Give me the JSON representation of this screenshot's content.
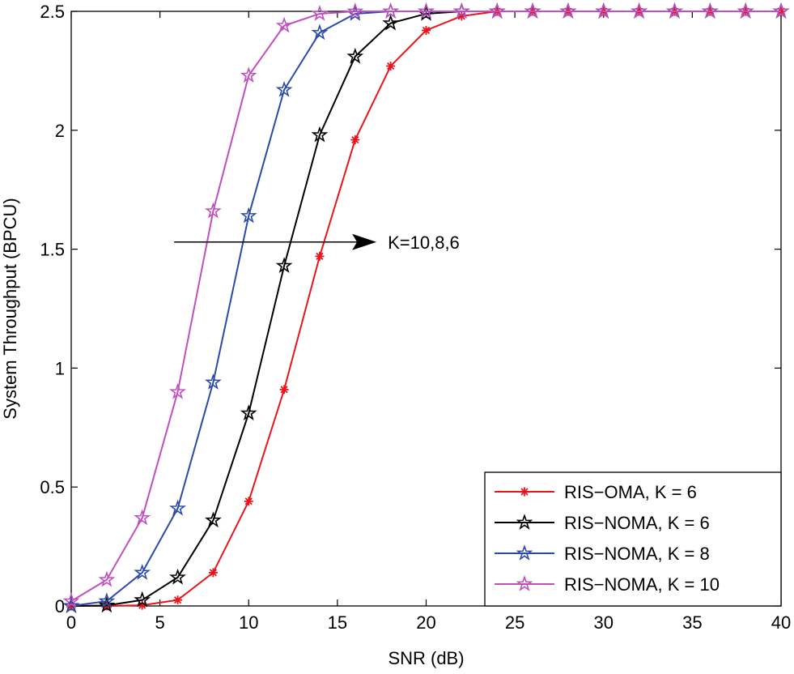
{
  "chart_data": {
    "type": "line",
    "xlabel": "SNR (dB)",
    "ylabel": "System Throughput (BPCU)",
    "xlim": [
      0,
      40
    ],
    "ylim": [
      0,
      2.5
    ],
    "xticks": [
      0,
      5,
      10,
      15,
      20,
      25,
      30,
      35,
      40
    ],
    "yticks": [
      0,
      0.5,
      1,
      1.5,
      2,
      2.5
    ],
    "xtick_labels": [
      "0",
      "5",
      "10",
      "15",
      "20",
      "25",
      "30",
      "35",
      "40"
    ],
    "ytick_labels": [
      "0",
      "0.5",
      "1",
      "1.5",
      "2",
      "2.5"
    ],
    "grid": false,
    "legend_position": "bottom-right",
    "x": [
      0,
      2,
      4,
      6,
      8,
      10,
      12,
      14,
      16,
      18,
      20,
      22,
      24,
      26,
      28,
      30,
      32,
      34,
      36,
      38,
      40
    ],
    "series": [
      {
        "name": "RIS−OMA, K = 6",
        "color": "#e8151b",
        "marker": "asterisk",
        "values": [
          0,
          0,
          0.003,
          0.025,
          0.14,
          0.44,
          0.91,
          1.47,
          1.96,
          2.27,
          2.42,
          2.48,
          2.5,
          2.5,
          2.5,
          2.5,
          2.5,
          2.5,
          2.5,
          2.5,
          2.5
        ]
      },
      {
        "name": "RIS−NOMA, K = 6",
        "color": "#000000",
        "marker": "star",
        "values": [
          0,
          0.002,
          0.025,
          0.12,
          0.36,
          0.81,
          1.43,
          1.98,
          2.31,
          2.45,
          2.49,
          2.5,
          2.5,
          2.5,
          2.5,
          2.5,
          2.5,
          2.5,
          2.5,
          2.5,
          2.5
        ]
      },
      {
        "name": "RIS−NOMA, K = 8",
        "color": "#2a4aa8",
        "marker": "star",
        "values": [
          0,
          0.02,
          0.14,
          0.41,
          0.94,
          1.64,
          2.17,
          2.41,
          2.49,
          2.5,
          2.5,
          2.5,
          2.5,
          2.5,
          2.5,
          2.5,
          2.5,
          2.5,
          2.5,
          2.5,
          2.5
        ]
      },
      {
        "name": "RIS−NOMA, K = 10",
        "color": "#bf4fbf",
        "marker": "star",
        "values": [
          0.02,
          0.11,
          0.37,
          0.9,
          1.66,
          2.23,
          2.44,
          2.49,
          2.5,
          2.5,
          2.5,
          2.5,
          2.5,
          2.5,
          2.5,
          2.5,
          2.5,
          2.5,
          2.5,
          2.5,
          2.5
        ]
      }
    ],
    "annotations": [
      {
        "text": "K=10,8,6",
        "arrow_from": [
          5.8,
          1.53
        ],
        "arrow_to": [
          17.2,
          1.53
        ]
      }
    ]
  }
}
